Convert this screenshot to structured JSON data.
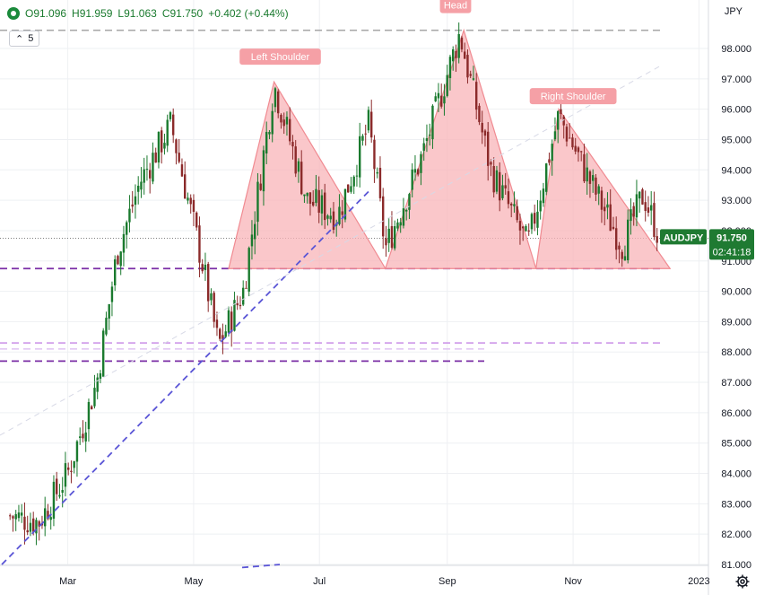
{
  "header": {
    "open": "O91.096",
    "high": "H91.959",
    "low": "L91.063",
    "close": "C91.750",
    "change": "+0.402 (+0.44%)",
    "period": "5",
    "currency": "JPY"
  },
  "badges": {
    "symbol": "AUDJPY",
    "price": "91.750",
    "countdown": "02:41:18"
  },
  "annotations": {
    "left_shoulder": "Left Shoulder",
    "head": "Head",
    "right_shoulder": "Right Shoulder"
  },
  "colors": {
    "up": "#1a7a2e",
    "down": "#8b2a2a",
    "pattern_fill": "#f8b4b8",
    "pattern_stroke": "#f08a91",
    "label_bg": "#f5a0a6",
    "support": "#7b2fa6",
    "trend": "#5a55d6",
    "badge": "#1f7a32"
  },
  "chart_data": {
    "type": "candlestick",
    "symbol": "AUDJPY",
    "currency": "JPY",
    "ylim": [
      81.0,
      99.0
    ],
    "yticks": [
      "81.000",
      "82.000",
      "83.000",
      "84.000",
      "85.000",
      "86.000",
      "87.000",
      "88.000",
      "89.000",
      "90.000",
      "91.000",
      "92.000",
      "93.000",
      "94.000",
      "95.000",
      "96.000",
      "97.000",
      "98.000"
    ],
    "xticks": [
      "Mar",
      "May",
      "Jul",
      "Sep",
      "Nov",
      "2023"
    ],
    "last_price": 91.75,
    "key_closes": [
      {
        "date": "2022-02-01",
        "close": 82.6
      },
      {
        "date": "2022-02-15",
        "close": 82.4
      },
      {
        "date": "2022-03-01",
        "close": 84.0
      },
      {
        "date": "2022-03-15",
        "close": 87.0
      },
      {
        "date": "2022-03-25",
        "close": 91.3
      },
      {
        "date": "2022-04-05",
        "close": 93.6
      },
      {
        "date": "2022-04-20",
        "close": 95.5
      },
      {
        "date": "2022-05-05",
        "close": 91.0
      },
      {
        "date": "2022-05-13",
        "close": 88.2
      },
      {
        "date": "2022-05-25",
        "close": 90.0
      },
      {
        "date": "2022-06-09",
        "close": 96.8
      },
      {
        "date": "2022-06-25",
        "close": 93.0
      },
      {
        "date": "2022-07-10",
        "close": 92.5
      },
      {
        "date": "2022-07-25",
        "close": 95.5
      },
      {
        "date": "2022-08-02",
        "close": 91.4
      },
      {
        "date": "2022-08-20",
        "close": 94.5
      },
      {
        "date": "2022-09-07",
        "close": 98.5
      },
      {
        "date": "2022-09-22",
        "close": 94.0
      },
      {
        "date": "2022-10-10",
        "close": 91.5
      },
      {
        "date": "2022-10-25",
        "close": 95.8
      },
      {
        "date": "2022-11-10",
        "close": 93.5
      },
      {
        "date": "2022-11-25",
        "close": 91.5
      },
      {
        "date": "2022-12-05",
        "close": 93.2
      },
      {
        "date": "2022-12-13",
        "close": 91.75
      }
    ],
    "horizontal_levels": [
      98.6,
      90.75,
      88.3,
      88.1,
      87.7
    ],
    "trendline": {
      "from": {
        "date": "2022-01-28",
        "price": 81.0
      },
      "to": {
        "date": "2022-07-25",
        "price": 93.3
      }
    },
    "pattern": "head and shoulders"
  }
}
